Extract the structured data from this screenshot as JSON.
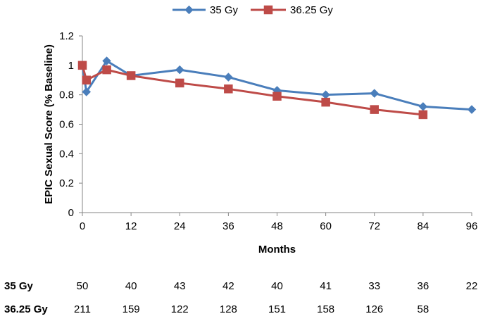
{
  "chart_data": {
    "type": "line",
    "title": "",
    "xlabel": "Months",
    "ylabel": "EPIC Sexual Score (% Baseline)",
    "xlim": [
      0,
      96
    ],
    "ylim": [
      0,
      1.2
    ],
    "x_ticks": [
      0,
      12,
      24,
      36,
      48,
      60,
      72,
      84,
      96
    ],
    "x_tick_labels": [
      "0",
      "12",
      "24",
      "36",
      "48",
      "60",
      "72",
      "84",
      "96"
    ],
    "y_ticks": [
      0,
      0.2,
      0.4,
      0.6,
      0.8,
      1.0,
      1.2
    ],
    "y_tick_labels": [
      "0",
      "0.2",
      "0.4",
      "0.6",
      "0.8",
      "1",
      "1.2"
    ],
    "legend_position": "top-center",
    "series": [
      {
        "name": "35 Gy",
        "color": "#4A7EBB",
        "marker": "diamond",
        "x": [
          0,
          1,
          6,
          12,
          24,
          36,
          48,
          60,
          72,
          84,
          96
        ],
        "values": [
          1.0,
          0.82,
          1.03,
          0.93,
          0.97,
          0.92,
          0.83,
          0.8,
          0.81,
          0.72,
          0.7
        ]
      },
      {
        "name": "36.25 Gy",
        "color": "#BE4B48",
        "marker": "square",
        "x": [
          0,
          1,
          6,
          12,
          24,
          36,
          48,
          60,
          72,
          84
        ],
        "values": [
          1.0,
          0.9,
          0.97,
          0.93,
          0.88,
          0.84,
          0.79,
          0.75,
          0.7,
          0.665
        ]
      }
    ],
    "numbers_at_risk": [
      {
        "label": "35 Gy",
        "x": [
          0,
          12,
          24,
          36,
          48,
          60,
          72,
          84,
          96
        ],
        "counts": [
          "50",
          "40",
          "43",
          "42",
          "40",
          "41",
          "33",
          "36",
          "22"
        ]
      },
      {
        "label": "36.25 Gy",
        "x": [
          0,
          12,
          24,
          36,
          48,
          60,
          72,
          84
        ],
        "counts": [
          "211",
          "159",
          "122",
          "128",
          "151",
          "158",
          "126",
          "58"
        ]
      }
    ]
  }
}
